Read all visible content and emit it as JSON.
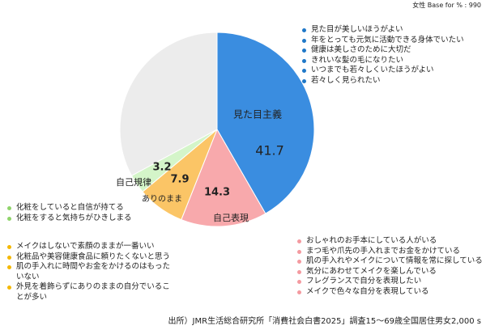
{
  "header": "女性 Base for % : 990",
  "source": "出所）JMR生活総合研究所「消費社会白書2025」調査15～69歳全国居住男女2,000 s",
  "chart_data": {
    "type": "pie",
    "categories": [
      "見た目主義",
      "自己表現",
      "ありのまま",
      "自己規律",
      null
    ],
    "values": [
      41.7,
      14.3,
      7.9,
      3.2,
      32.9
    ],
    "colors": [
      "#3a8de0",
      "#f8a9ac",
      "#fbc566",
      "#d4f5c9",
      "#ececec"
    ],
    "annotations": [
      {
        "color": "#1f78c8",
        "items": [
          "見た目が美しいほうがよい",
          "年をとっても元気に活動できる身体でいたい",
          "健康は美しさのために大切だ",
          "きれいな髪の毛になりたい",
          "いつまでも若々しくいたほうがよい",
          "若々しく見られたい"
        ]
      },
      {
        "color": "#f49aa0",
        "items": [
          "おしゃれのお手本にしている人がいる",
          "まつ毛や爪先の手入れまでお金をかけている",
          "肌の手入れやメイクについて情報を常に探している",
          "気分にあわせてメイクを楽しんでいる",
          "フレグランスで自分を表現したい",
          "メイクで色々な自分を表現している"
        ]
      },
      {
        "color": "#f5b800",
        "items": [
          "メイクはしないで素顔のままが一番いい",
          "化粧品や美容健康食品に頼りたくないと思う",
          "肌の手入れに時間やお金をかけるのはもったいない",
          "外見を着飾らずにありのままの自分でいることが多い"
        ]
      },
      {
        "color": "#8fd46a",
        "items": [
          "化粧をしていると自信が持てる",
          "化粧をすると気持ちがひきしまる"
        ]
      }
    ]
  }
}
